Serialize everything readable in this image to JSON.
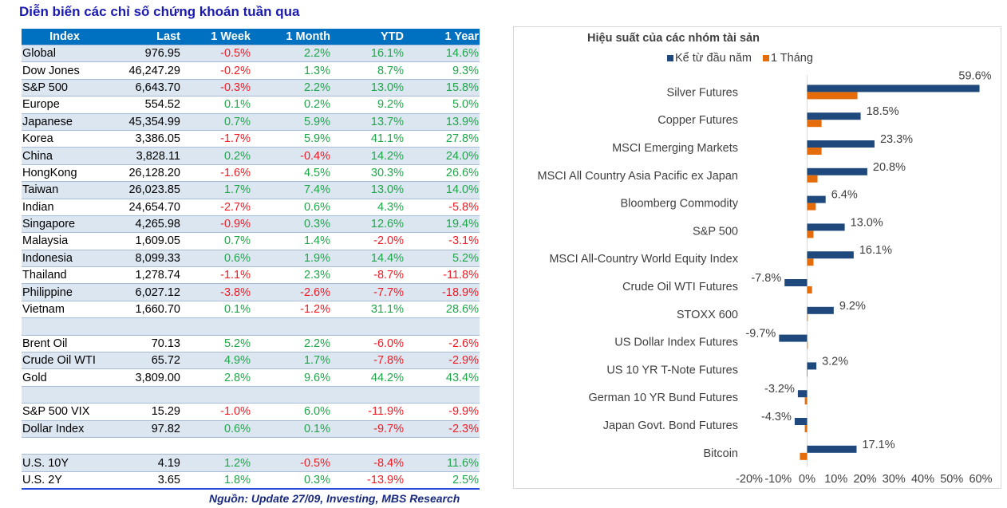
{
  "page": {
    "title": "Diễn biến các chỉ số chứng khoán tuần qua",
    "source": "Nguồn: Update 27/09, Investing, MBS Research"
  },
  "table": {
    "headers": [
      "Index",
      "Last",
      "1 Week",
      "1 Month",
      "YTD",
      "1 Year"
    ],
    "rows": [
      {
        "name": "Global",
        "last": "976.95",
        "w": "-0.5%",
        "m": "2.2%",
        "ytd": "16.1%",
        "y": "14.6%"
      },
      {
        "name": "Dow Jones",
        "last": "46,247.29",
        "w": "-0.2%",
        "m": "1.3%",
        "ytd": "8.7%",
        "y": "9.3%"
      },
      {
        "name": "S&P 500",
        "last": "6,643.70",
        "w": "-0.3%",
        "m": "2.2%",
        "ytd": "13.0%",
        "y": "15.8%"
      },
      {
        "name": "Europe",
        "last": "554.52",
        "w": "0.1%",
        "m": "0.2%",
        "ytd": "9.2%",
        "y": "5.0%"
      },
      {
        "name": "Japanese",
        "last": "45,354.99",
        "w": "0.7%",
        "m": "5.9%",
        "ytd": "13.7%",
        "y": "13.9%"
      },
      {
        "name": "Korea",
        "last": "3,386.05",
        "w": "-1.7%",
        "m": "5.9%",
        "ytd": "41.1%",
        "y": "27.8%"
      },
      {
        "name": "China",
        "last": "3,828.11",
        "w": "0.2%",
        "m": "-0.4%",
        "ytd": "14.2%",
        "y": "24.0%"
      },
      {
        "name": "HongKong",
        "last": "26,128.20",
        "w": "-1.6%",
        "m": "4.5%",
        "ytd": "30.3%",
        "y": "26.6%"
      },
      {
        "name": "Taiwan",
        "last": "26,023.85",
        "w": "1.7%",
        "m": "7.4%",
        "ytd": "13.0%",
        "y": "14.0%"
      },
      {
        "name": "Indian",
        "last": "24,654.70",
        "w": "-2.7%",
        "m": "0.6%",
        "ytd": "4.3%",
        "y": "-5.8%"
      },
      {
        "name": "Singapore",
        "last": "4,265.98",
        "w": "-0.9%",
        "m": "0.3%",
        "ytd": "12.6%",
        "y": "19.4%"
      },
      {
        "name": "Malaysia",
        "last": "1,609.05",
        "w": "0.7%",
        "m": "1.4%",
        "ytd": "-2.0%",
        "y": "-3.1%"
      },
      {
        "name": "Indonesia",
        "last": "8,099.33",
        "w": "0.6%",
        "m": "1.9%",
        "ytd": "14.4%",
        "y": "5.2%"
      },
      {
        "name": "Thailand",
        "last": "1,278.74",
        "w": "-1.1%",
        "m": "2.3%",
        "ytd": "-8.7%",
        "y": "-11.8%"
      },
      {
        "name": "Philippine",
        "last": "6,027.12",
        "w": "-3.8%",
        "m": "-2.6%",
        "ytd": "-7.7%",
        "y": "-18.9%"
      },
      {
        "name": "Vietnam",
        "last": "1,660.70",
        "w": "0.1%",
        "m": "-1.2%",
        "ytd": "31.1%",
        "y": "28.6%"
      },
      {
        "name": "",
        "last": "",
        "w": "",
        "m": "",
        "ytd": "",
        "y": ""
      },
      {
        "name": "Brent Oil",
        "last": "70.13",
        "w": "5.2%",
        "m": "2.2%",
        "ytd": "-6.0%",
        "y": "-2.6%"
      },
      {
        "name": "Crude Oil WTI",
        "last": "65.72",
        "w": "4.9%",
        "m": "1.7%",
        "ytd": "-7.8%",
        "y": "-2.9%"
      },
      {
        "name": "Gold",
        "last": "3,809.00",
        "w": "2.8%",
        "m": "9.6%",
        "ytd": "44.2%",
        "y": "43.4%"
      },
      {
        "name": "",
        "last": "",
        "w": "",
        "m": "",
        "ytd": "",
        "y": ""
      },
      {
        "name": "S&P 500 VIX",
        "last": "15.29",
        "w": "-1.0%",
        "m": "6.0%",
        "ytd": "-11.9%",
        "y": "-9.9%"
      },
      {
        "name": "Dollar Index",
        "last": "97.82",
        "w": "0.6%",
        "m": "0.1%",
        "ytd": "-9.7%",
        "y": "-2.3%"
      },
      {
        "name": "",
        "last": "",
        "w": "",
        "m": "",
        "ytd": "",
        "y": ""
      },
      {
        "name": "U.S. 10Y",
        "last": "4.19",
        "w": "1.2%",
        "m": "-0.5%",
        "ytd": "-8.4%",
        "y": "11.6%"
      },
      {
        "name": "U.S. 2Y",
        "last": "3.65",
        "w": "1.8%",
        "m": "0.3%",
        "ytd": "-13.9%",
        "y": "2.5%"
      }
    ]
  },
  "colors": {
    "header_bg": "#0070c0",
    "shade_bg": "#dce6f1",
    "positive": "#1fa64a",
    "negative": "#ee1c25",
    "series_ytd": "#1f497d",
    "series_1m": "#e46c0a"
  },
  "chart_data": {
    "type": "bar",
    "orientation": "horizontal",
    "title": "Hiệu suất của các nhóm tài sản",
    "legend_position": "top",
    "categories": [
      "Silver Futures",
      "Copper Futures",
      "MSCI Emerging Markets",
      "MSCI All Country Asia Pacific ex Japan",
      "Bloomberg Commodity",
      "S&P 500",
      "MSCI All-Country World Equity Index",
      "Crude Oil WTI Futures",
      "STOXX 600",
      "US Dollar Index Futures",
      "US 10 YR T-Note Futures",
      "German 10 YR Bund Futures",
      "Japan Govt. Bond Futures",
      "Bitcoin"
    ],
    "series": [
      {
        "name": "Kể từ đầu năm",
        "values": [
          59.6,
          18.5,
          23.3,
          20.8,
          6.4,
          13.0,
          16.1,
          -7.8,
          9.2,
          -9.7,
          3.2,
          -3.2,
          -4.3,
          17.1
        ],
        "labels": [
          "59.6%",
          "18.5%",
          "23.3%",
          "20.8%",
          "6.4%",
          "13.0%",
          "16.1%",
          "-7.8%",
          "9.2%",
          "-9.7%",
          "3.2%",
          "-3.2%",
          "-4.3%",
          "17.1%"
        ]
      },
      {
        "name": "1 Tháng",
        "values": [
          17.4,
          5.0,
          5.0,
          3.6,
          3.0,
          2.2,
          2.2,
          1.7,
          0.2,
          0.1,
          -0.1,
          -0.8,
          -0.8,
          -2.5
        ]
      }
    ],
    "xlim": [
      -20,
      60
    ],
    "xticks": [
      "-20%",
      "-10%",
      "0%",
      "10%",
      "20%",
      "30%",
      "40%",
      "50%",
      "60%"
    ],
    "xtick_values": [
      -20,
      -10,
      0,
      10,
      20,
      30,
      40,
      50,
      60
    ],
    "grid": false
  }
}
